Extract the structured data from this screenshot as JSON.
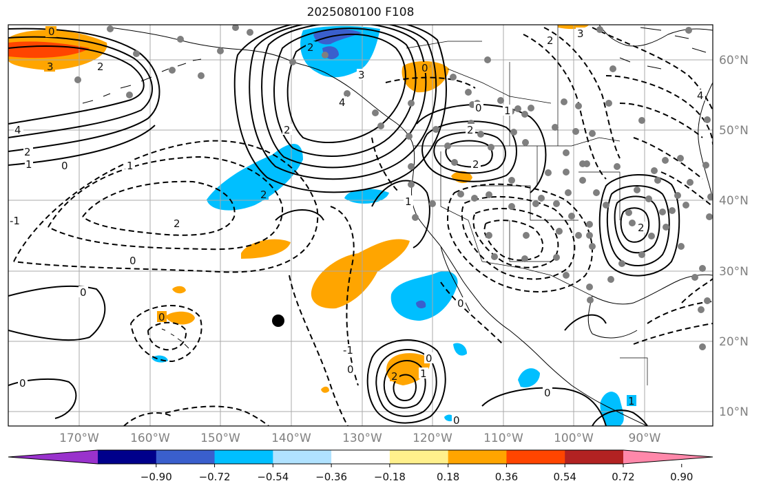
{
  "title": "2025080100 F108",
  "map": {
    "lon_labels": [
      "170°W",
      "160°W",
      "150°W",
      "140°W",
      "130°W",
      "120°W",
      "110°W",
      "100°W",
      "90°W"
    ],
    "lat_labels": [
      "60°N",
      "50°N",
      "40°N",
      "30°N",
      "20°N",
      "10°N"
    ],
    "contour_labels": [
      "0",
      "3",
      "2",
      "4",
      "1",
      "2",
      "0",
      "-1",
      "2",
      "0",
      "0",
      "0",
      "0",
      "3",
      "2",
      "4",
      "2",
      "0",
      "1",
      "2",
      "2",
      "1",
      "0",
      "1",
      "2",
      "0",
      "-1",
      "0",
      "1",
      "2",
      "0",
      "0",
      "0",
      "1",
      "2",
      "4",
      "3",
      "2"
    ],
    "colors": {
      "land_grid": "#999999",
      "coast": "#000000",
      "marker_gray": "#7f7f7f",
      "marker_black": "#000000"
    }
  },
  "colorbar": {
    "tick_labels": [
      "−0.90",
      "−0.72",
      "−0.54",
      "−0.36",
      "−0.18",
      "0.18",
      "0.36",
      "0.54",
      "0.72",
      "0.90"
    ],
    "colors": [
      "#9932cc",
      "#00008b",
      "#3a5fcd",
      "#00bfff",
      "#b0e2ff",
      "#ffffff",
      "#fff08c",
      "#ffa500",
      "#ff4500",
      "#b22222",
      "#ff88aa"
    ]
  }
}
